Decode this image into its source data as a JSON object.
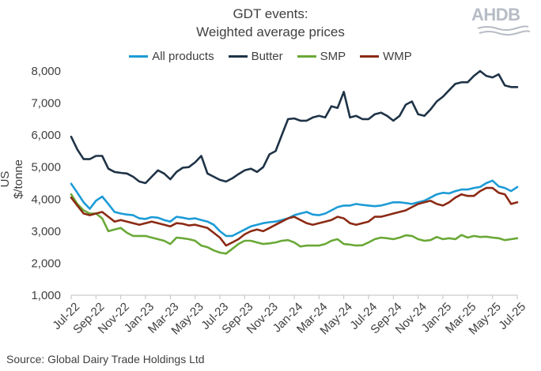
{
  "title": [
    "GDT events:",
    "Weighted average prices"
  ],
  "logo": "AHDB",
  "source": "Source: Global Dairy Trade Holdings Ltd",
  "colors": {
    "All products": "#1c9bd6",
    "Butter": "#1f3347",
    "SMP": "#6aa837",
    "WMP": "#8b2a14"
  },
  "chart_data": {
    "type": "line",
    "title": "GDT events: Weighted average prices",
    "ylabel": "US $/tonne",
    "xlabel": "",
    "ylim": [
      1000,
      8000
    ],
    "yticks": [
      "1,000",
      "2,000",
      "3,000",
      "4,000",
      "5,000",
      "6,000",
      "7,000",
      "8,000"
    ],
    "ytick_values": [
      1000,
      2000,
      3000,
      4000,
      5000,
      6000,
      7000,
      8000
    ],
    "xtick_labels": [
      "Jul-22",
      "Sep-22",
      "Nov-22",
      "Jan-23",
      "Mar-23",
      "May-23",
      "Jul-23",
      "Sep-23",
      "Nov-23",
      "Jan-24",
      "Mar-24",
      "May-24",
      "Jul-24",
      "Sep-24",
      "Nov-24",
      "Jan-25",
      "Mar-25",
      "May-25",
      "Jul-25"
    ],
    "xtick_index": [
      0,
      4,
      8,
      12,
      16,
      20,
      24,
      28,
      32,
      36,
      40,
      44,
      48,
      52,
      56,
      60,
      64,
      68,
      72
    ],
    "legend": "top",
    "grid": false,
    "series": [
      {
        "name": "All products",
        "values": [
          4480,
          4200,
          3900,
          3700,
          3950,
          4080,
          3850,
          3600,
          3550,
          3520,
          3500,
          3400,
          3380,
          3440,
          3420,
          3350,
          3300,
          3450,
          3420,
          3380,
          3400,
          3350,
          3300,
          3200,
          3000,
          2850,
          2850,
          2950,
          3050,
          3150,
          3200,
          3250,
          3280,
          3300,
          3350,
          3400,
          3500,
          3550,
          3600,
          3520,
          3500,
          3550,
          3650,
          3750,
          3800,
          3800,
          3850,
          3820,
          3800,
          3780,
          3800,
          3850,
          3900,
          3900,
          3880,
          3850,
          3900,
          3950,
          4050,
          4150,
          4200,
          4180,
          4250,
          4300,
          4300,
          4350,
          4380,
          4500,
          4580,
          4400,
          4350,
          4250,
          4380
        ]
      },
      {
        "name": "Butter",
        "values": [
          5950,
          5550,
          5250,
          5250,
          5350,
          5350,
          4950,
          4850,
          4820,
          4800,
          4700,
          4550,
          4500,
          4700,
          4900,
          4800,
          4620,
          4850,
          4980,
          5000,
          5150,
          5350,
          4800,
          4700,
          4600,
          4550,
          4650,
          4780,
          4900,
          4950,
          4850,
          5000,
          5400,
          5500,
          6000,
          6500,
          6520,
          6450,
          6450,
          6550,
          6600,
          6550,
          6900,
          6850,
          7350,
          6550,
          6600,
          6500,
          6500,
          6650,
          6700,
          6600,
          6450,
          6600,
          6950,
          7050,
          6650,
          6600,
          6800,
          7050,
          7200,
          7400,
          7600,
          7650,
          7650,
          7850,
          8000,
          7850,
          7800,
          7900,
          7550,
          7500,
          7500
        ]
      },
      {
        "name": "SMP",
        "values": [
          4150,
          3850,
          3650,
          3550,
          3550,
          3400,
          3000,
          3050,
          3100,
          2950,
          2850,
          2850,
          2850,
          2800,
          2750,
          2700,
          2600,
          2800,
          2780,
          2750,
          2700,
          2550,
          2500,
          2400,
          2330,
          2300,
          2450,
          2600,
          2700,
          2700,
          2650,
          2600,
          2620,
          2650,
          2700,
          2720,
          2650,
          2520,
          2550,
          2550,
          2550,
          2600,
          2700,
          2750,
          2600,
          2580,
          2550,
          2560,
          2650,
          2750,
          2800,
          2780,
          2750,
          2800,
          2870,
          2850,
          2750,
          2700,
          2720,
          2820,
          2750,
          2780,
          2750,
          2880,
          2800,
          2850,
          2820,
          2830,
          2800,
          2780,
          2720,
          2750,
          2780
        ]
      },
      {
        "name": "WMP",
        "values": [
          4050,
          3800,
          3550,
          3500,
          3550,
          3600,
          3450,
          3300,
          3350,
          3300,
          3250,
          3200,
          3250,
          3300,
          3250,
          3200,
          3150,
          3250,
          3230,
          3180,
          3200,
          3150,
          3100,
          2950,
          2800,
          2550,
          2650,
          2750,
          2900,
          3000,
          3050,
          3000,
          3100,
          3200,
          3300,
          3400,
          3450,
          3350,
          3250,
          3200,
          3250,
          3300,
          3350,
          3450,
          3400,
          3250,
          3200,
          3250,
          3300,
          3450,
          3450,
          3500,
          3550,
          3600,
          3650,
          3750,
          3850,
          3900,
          3950,
          3850,
          3800,
          3900,
          4050,
          4150,
          4100,
          4100,
          4250,
          4350,
          4350,
          4200,
          4150,
          3850,
          3900
        ]
      }
    ]
  }
}
